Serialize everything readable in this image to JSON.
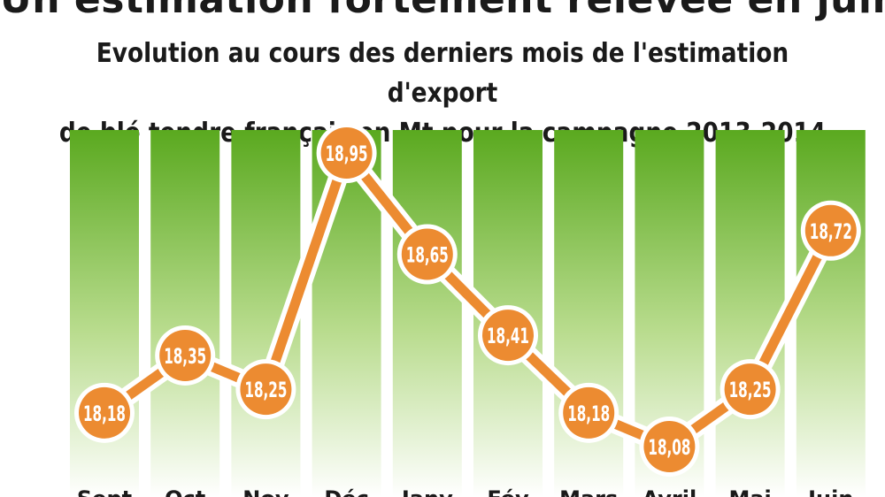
{
  "headline": "Un estimation fortement relevée en juin",
  "subtitle_line1": "Evolution au cours des derniers mois de l'estimation d'export",
  "subtitle_line2": "de blé tendre français en Mt pour la campagne 2013-2014",
  "colors": {
    "column_top": "#5aa91f",
    "column_bottom": "#ffffff",
    "line": "#ec8b31",
    "line_outline": "#ffffff",
    "marker_fill": "#ec8b31",
    "marker_text": "#ffffff",
    "label_text": "#1a1a1a"
  },
  "chart_data": {
    "type": "line",
    "title": "Evolution au cours des derniers mois de l'estimation d'export de blé tendre français en Mt pour la campagne 2013-2014",
    "categories": [
      "Sept",
      "Oct",
      "Nov",
      "Déc",
      "Janv",
      "Fév",
      "Mars",
      "Avril",
      "Mai",
      "Juin"
    ],
    "values": [
      18.18,
      18.35,
      18.25,
      18.95,
      18.65,
      18.41,
      18.18,
      18.08,
      18.25,
      18.72
    ],
    "data_labels": [
      "18,18",
      "18,35",
      "18,25",
      "18,95",
      "18,65",
      "18,41",
      "18,18",
      "18,08",
      "18,25",
      "18,72"
    ],
    "grid": false,
    "legend": "none"
  }
}
